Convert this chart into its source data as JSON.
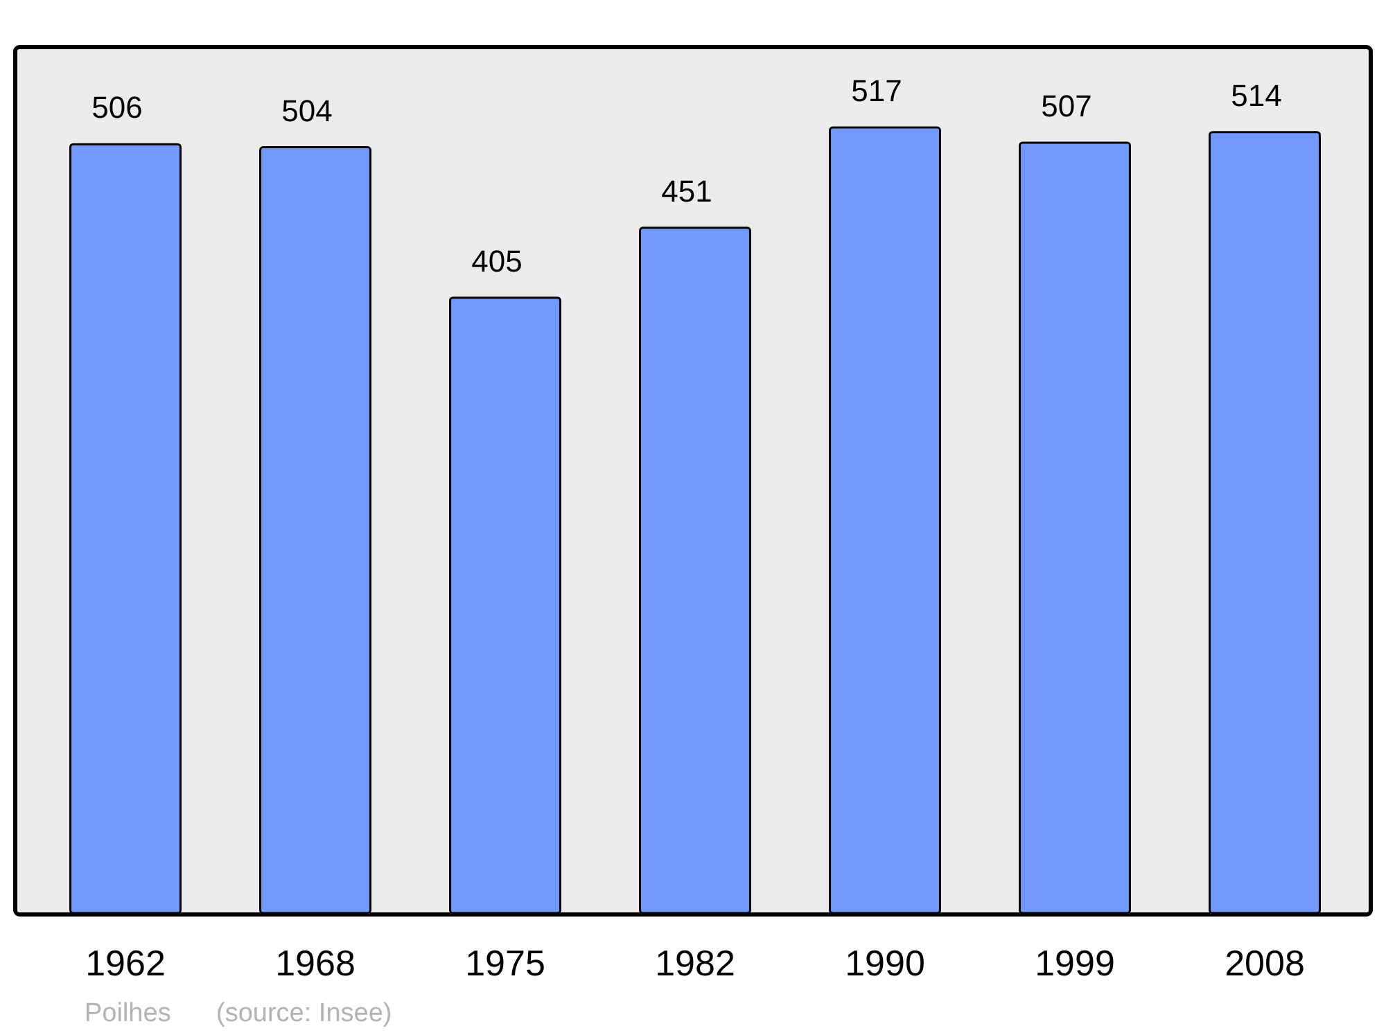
{
  "chart_data": {
    "type": "bar",
    "categories": [
      "1962",
      "1968",
      "1975",
      "1982",
      "1990",
      "1999",
      "2008"
    ],
    "values": [
      506,
      504,
      405,
      451,
      517,
      507,
      514
    ],
    "color": "#7399ff",
    "ylim": [
      0,
      569
    ],
    "data_labels": true,
    "tick_labels": "x",
    "annotations": [
      "Poilhes",
      "(source: Insee)"
    ]
  }
}
